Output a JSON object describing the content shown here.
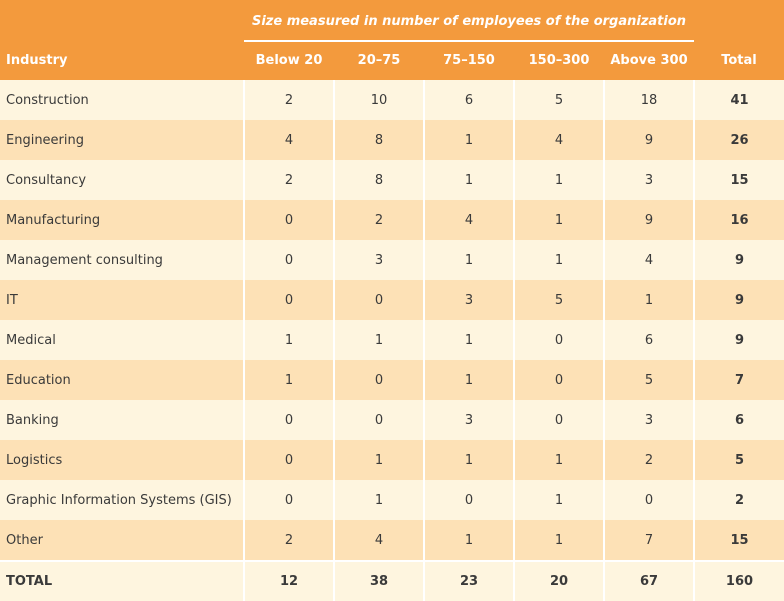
{
  "table": {
    "super_header": "Size measured in number of employees of the organization",
    "columns": [
      "Industry",
      "Below 20",
      "20–75",
      "75–150",
      "150–300",
      "Above 300",
      "Total"
    ],
    "rows": [
      {
        "industry": "Construction",
        "below20": "2",
        "c20_75": "10",
        "c75_150": "6",
        "c150_300": "5",
        "above300": "18",
        "total": "41"
      },
      {
        "industry": "Engineering",
        "below20": "4",
        "c20_75": "8",
        "c75_150": "1",
        "c150_300": "4",
        "above300": "9",
        "total": "26"
      },
      {
        "industry": "Consultancy",
        "below20": "2",
        "c20_75": "8",
        "c75_150": "1",
        "c150_300": "1",
        "above300": "3",
        "total": "15"
      },
      {
        "industry": "Manufacturing",
        "below20": "0",
        "c20_75": "2",
        "c75_150": "4",
        "c150_300": "1",
        "above300": "9",
        "total": "16"
      },
      {
        "industry": "Management consulting",
        "below20": "0",
        "c20_75": "3",
        "c75_150": "1",
        "c150_300": "1",
        "above300": "4",
        "total": "9"
      },
      {
        "industry": "IT",
        "below20": "0",
        "c20_75": "0",
        "c75_150": "3",
        "c150_300": "5",
        "above300": "1",
        "total": "9"
      },
      {
        "industry": "Medical",
        "below20": "1",
        "c20_75": "1",
        "c75_150": "1",
        "c150_300": "0",
        "above300": "6",
        "total": "9"
      },
      {
        "industry": "Education",
        "below20": "1",
        "c20_75": "0",
        "c75_150": "1",
        "c150_300": "0",
        "above300": "5",
        "total": "7"
      },
      {
        "industry": "Banking",
        "below20": "0",
        "c20_75": "0",
        "c75_150": "3",
        "c150_300": "0",
        "above300": "3",
        "total": "6"
      },
      {
        "industry": "Logistics",
        "below20": "0",
        "c20_75": "1",
        "c75_150": "1",
        "c150_300": "1",
        "above300": "2",
        "total": "5"
      },
      {
        "industry": "Graphic Information Systems (GIS)",
        "below20": "0",
        "c20_75": "1",
        "c75_150": "0",
        "c150_300": "1",
        "above300": "0",
        "total": "2"
      },
      {
        "industry": "Other",
        "below20": "2",
        "c20_75": "4",
        "c75_150": "1",
        "c150_300": "1",
        "above300": "7",
        "total": "15"
      }
    ],
    "total_row": {
      "industry": "TOTAL",
      "below20": "12",
      "c20_75": "38",
      "c75_150": "23",
      "c150_300": "20",
      "above300": "67",
      "total": "160"
    }
  },
  "colors": {
    "header_bg": "#f39a3d",
    "row_light": "#fef5df",
    "row_dark": "#fde1b6"
  }
}
